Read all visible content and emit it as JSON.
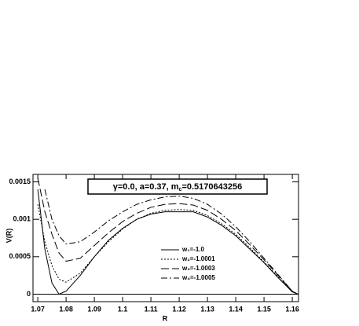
{
  "chart_data": {
    "type": "line",
    "annotation": [
      "γ=0.0, a=0.37, m",
      "c",
      "=0.5170643256"
    ],
    "x_label": "R",
    "y_label": "V(R)",
    "x": [
      1.07,
      1.0725,
      1.075,
      1.0775,
      1.08,
      1.085,
      1.09,
      1.095,
      1.1,
      1.105,
      1.11,
      1.115,
      1.12,
      1.125,
      1.13,
      1.135,
      1.14,
      1.145,
      1.15,
      1.155,
      1.16,
      1.162
    ],
    "series": [
      {
        "name": "w₁=-1.0",
        "color": "#000000",
        "dash": "none",
        "values": [
          0.0014,
          0.0006,
          0.00015,
          0.0,
          4e-05,
          0.00025,
          0.0005,
          0.00072,
          0.00088,
          0.001,
          0.00107,
          0.0011,
          0.0011,
          0.0011,
          0.00103,
          0.00092,
          0.00078,
          0.0006,
          0.00042,
          0.00022,
          3e-05,
          0
        ]
      },
      {
        "name": "w₂=-1.0001",
        "color": "#000000",
        "dash": "2,2",
        "values": [
          0.0012,
          0.0007,
          0.00038,
          0.0002,
          0.00016,
          0.00028,
          0.0005,
          0.0007,
          0.00087,
          0.001,
          0.00108,
          0.00112,
          0.00113,
          0.00112,
          0.00105,
          0.00094,
          0.0008,
          0.00062,
          0.00043,
          0.00023,
          3e-05,
          0
        ]
      },
      {
        "name": "w₃=-1.0003",
        "color": "#000000",
        "dash": "10,4",
        "values": [
          0.00155,
          0.0011,
          0.0008,
          0.00055,
          0.00044,
          0.00048,
          0.00065,
          0.00082,
          0.00097,
          0.00108,
          0.00116,
          0.0012,
          0.00121,
          0.00119,
          0.00112,
          0.001,
          0.00085,
          0.00066,
          0.00046,
          0.00025,
          4e-05,
          0
        ]
      },
      {
        "name": "w₄=-1.0005",
        "color": "#000000",
        "dash": "8,3,2,3",
        "values": [
          null,
          0.0014,
          0.001,
          0.00078,
          0.00067,
          0.0007,
          0.00083,
          0.00098,
          0.0011,
          0.0012,
          0.00126,
          0.0013,
          0.00131,
          0.00128,
          0.0012,
          0.00107,
          0.0009,
          0.0007,
          0.00048,
          0.00026,
          4e-05,
          0
        ]
      }
    ],
    "xlim": [
      1.0683,
      1.1622
    ],
    "ylim": [
      -0.0001,
      0.0016
    ],
    "xticks": [
      1.07,
      1.08,
      1.09,
      1.1,
      1.11,
      1.12,
      1.13,
      1.14,
      1.15,
      1.16
    ],
    "yticks": [
      0,
      0.0005,
      0.001,
      0.0015
    ]
  }
}
